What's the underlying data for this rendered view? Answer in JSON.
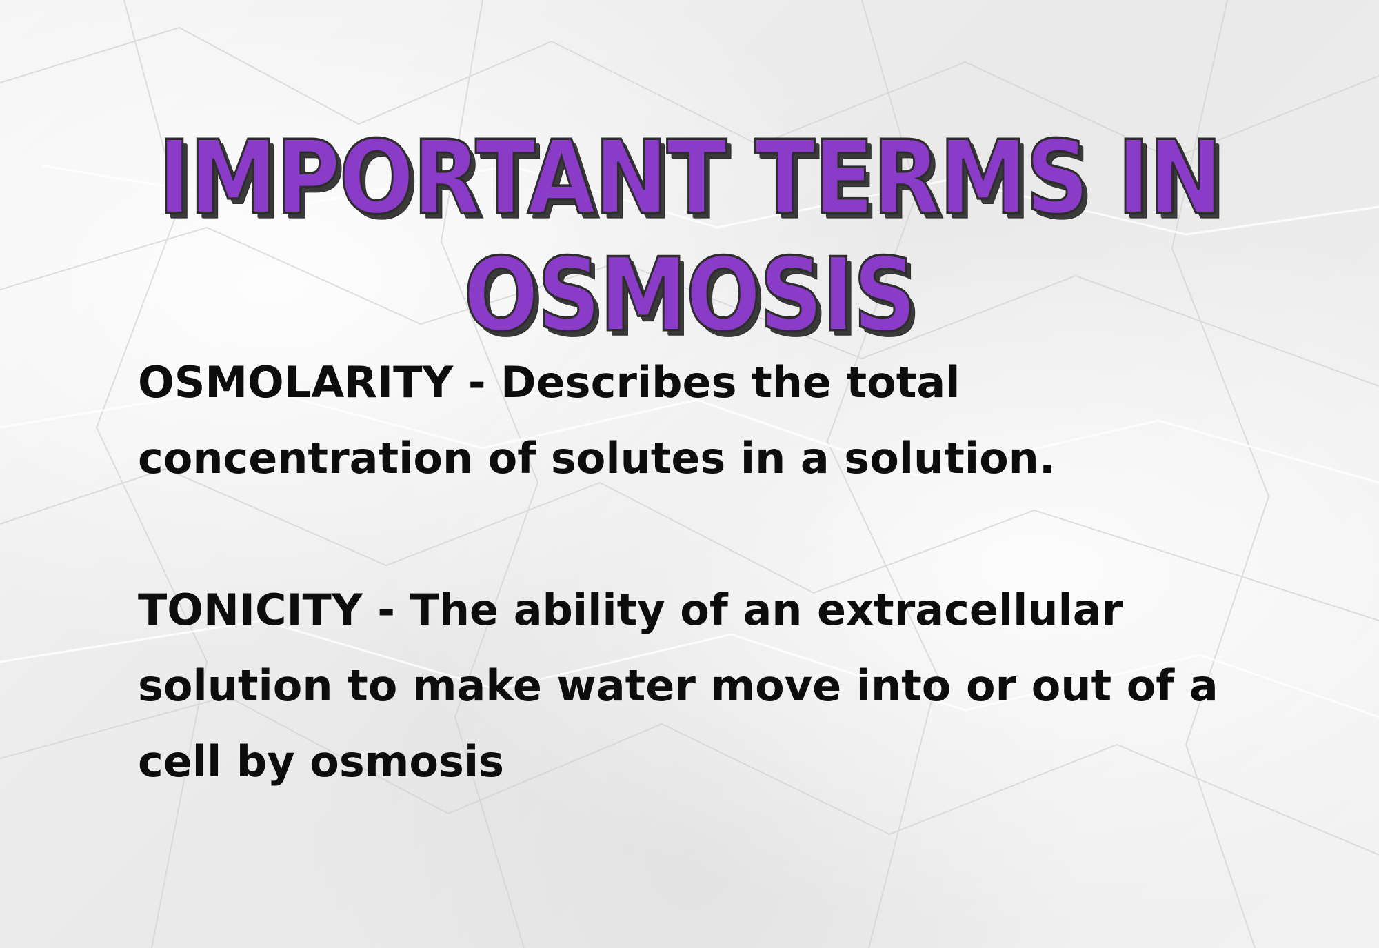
{
  "title": {
    "line1": "IMPORTANT TERMS  IN",
    "line2": "OSMOSIS"
  },
  "terms": [
    {
      "name": "OSMOLARITY",
      "separator": " - ",
      "definition": "Describes the total concentration of solutes in a solution."
    },
    {
      "name": "TONICITY",
      "separator": " - ",
      "definition": "The ability of an extracellular solution to make water move into or out of a cell by osmosis"
    }
  ],
  "colors": {
    "title": "#8a3cc8",
    "title_shadow": "#3a3a3a",
    "body_text": "#0d0d0d",
    "paper": "#efefef"
  }
}
